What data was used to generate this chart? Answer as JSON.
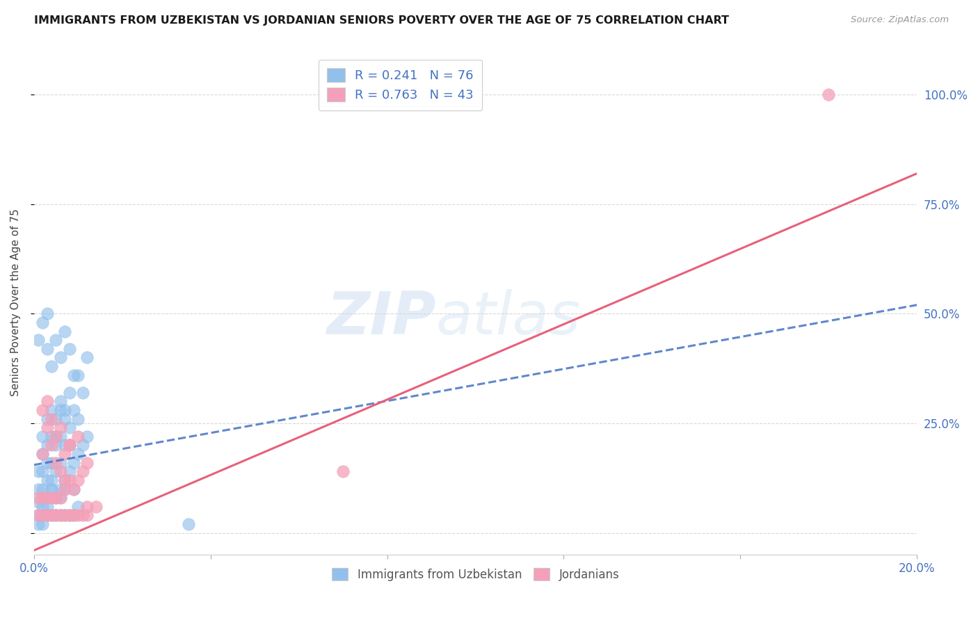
{
  "title": "IMMIGRANTS FROM UZBEKISTAN VS JORDANIAN SENIORS POVERTY OVER THE AGE OF 75 CORRELATION CHART",
  "source": "Source: ZipAtlas.com",
  "ylabel": "Seniors Poverty Over the Age of 75",
  "xlim": [
    0.0,
    0.2
  ],
  "ylim": [
    -0.05,
    1.1
  ],
  "blue_color": "#92C0EC",
  "pink_color": "#F4A0B8",
  "blue_line_color": "#4472C4",
  "pink_line_color": "#E8607A",
  "R_blue": 0.241,
  "N_blue": 76,
  "R_pink": 0.763,
  "N_pink": 43,
  "legend_label_blue": "Immigrants from Uzbekistan",
  "legend_label_pink": "Jordanians",
  "watermark_zip": "ZIP",
  "watermark_atlas": "atlas",
  "background_color": "#ffffff",
  "grid_color": "#d8d8d8",
  "blue_line_x0": 0.0,
  "blue_line_y0": 0.155,
  "blue_line_x1": 0.2,
  "blue_line_y1": 0.52,
  "pink_line_x0": 0.0,
  "pink_line_y0": -0.04,
  "pink_line_x1": 0.2,
  "pink_line_y1": 0.82,
  "blue_scatter_x": [
    0.001,
    0.001,
    0.001,
    0.002,
    0.002,
    0.002,
    0.002,
    0.002,
    0.003,
    0.003,
    0.003,
    0.003,
    0.003,
    0.004,
    0.004,
    0.004,
    0.004,
    0.005,
    0.005,
    0.005,
    0.005,
    0.006,
    0.006,
    0.006,
    0.006,
    0.007,
    0.007,
    0.007,
    0.008,
    0.008,
    0.008,
    0.009,
    0.009,
    0.01,
    0.01,
    0.01,
    0.011,
    0.011,
    0.012,
    0.012,
    0.001,
    0.002,
    0.002,
    0.003,
    0.003,
    0.004,
    0.004,
    0.005,
    0.005,
    0.006,
    0.006,
    0.007,
    0.007,
    0.008,
    0.009,
    0.009,
    0.01,
    0.001,
    0.002,
    0.003,
    0.003,
    0.004,
    0.005,
    0.006,
    0.007,
    0.008,
    0.009,
    0.002,
    0.003,
    0.001,
    0.004,
    0.006,
    0.005,
    0.007,
    0.035,
    0.008
  ],
  "blue_scatter_y": [
    0.07,
    0.1,
    0.14,
    0.06,
    0.1,
    0.14,
    0.18,
    0.22,
    0.08,
    0.12,
    0.16,
    0.2,
    0.26,
    0.1,
    0.16,
    0.22,
    0.28,
    0.08,
    0.14,
    0.2,
    0.26,
    0.1,
    0.16,
    0.22,
    0.3,
    0.12,
    0.2,
    0.28,
    0.14,
    0.24,
    0.32,
    0.16,
    0.28,
    0.18,
    0.26,
    0.36,
    0.2,
    0.32,
    0.22,
    0.4,
    0.04,
    0.04,
    0.08,
    0.04,
    0.08,
    0.04,
    0.1,
    0.04,
    0.08,
    0.04,
    0.08,
    0.04,
    0.1,
    0.04,
    0.04,
    0.1,
    0.06,
    0.02,
    0.02,
    0.06,
    0.42,
    0.38,
    0.44,
    0.4,
    0.46,
    0.42,
    0.36,
    0.48,
    0.5,
    0.44,
    0.12,
    0.28,
    0.22,
    0.26,
    0.02,
    0.2
  ],
  "pink_scatter_x": [
    0.001,
    0.001,
    0.002,
    0.002,
    0.002,
    0.003,
    0.003,
    0.003,
    0.004,
    0.004,
    0.004,
    0.005,
    0.005,
    0.005,
    0.006,
    0.006,
    0.006,
    0.007,
    0.007,
    0.007,
    0.008,
    0.008,
    0.008,
    0.009,
    0.009,
    0.01,
    0.01,
    0.01,
    0.011,
    0.011,
    0.012,
    0.012,
    0.002,
    0.003,
    0.004,
    0.005,
    0.006,
    0.007,
    0.008,
    0.07,
    0.012,
    0.014,
    0.18
  ],
  "pink_scatter_y": [
    0.04,
    0.08,
    0.04,
    0.08,
    0.18,
    0.04,
    0.08,
    0.24,
    0.04,
    0.08,
    0.2,
    0.04,
    0.08,
    0.16,
    0.04,
    0.08,
    0.24,
    0.04,
    0.1,
    0.18,
    0.04,
    0.12,
    0.2,
    0.04,
    0.1,
    0.04,
    0.12,
    0.22,
    0.04,
    0.14,
    0.04,
    0.16,
    0.28,
    0.3,
    0.26,
    0.22,
    0.14,
    0.12,
    0.2,
    0.14,
    0.06,
    0.06,
    1.0
  ]
}
